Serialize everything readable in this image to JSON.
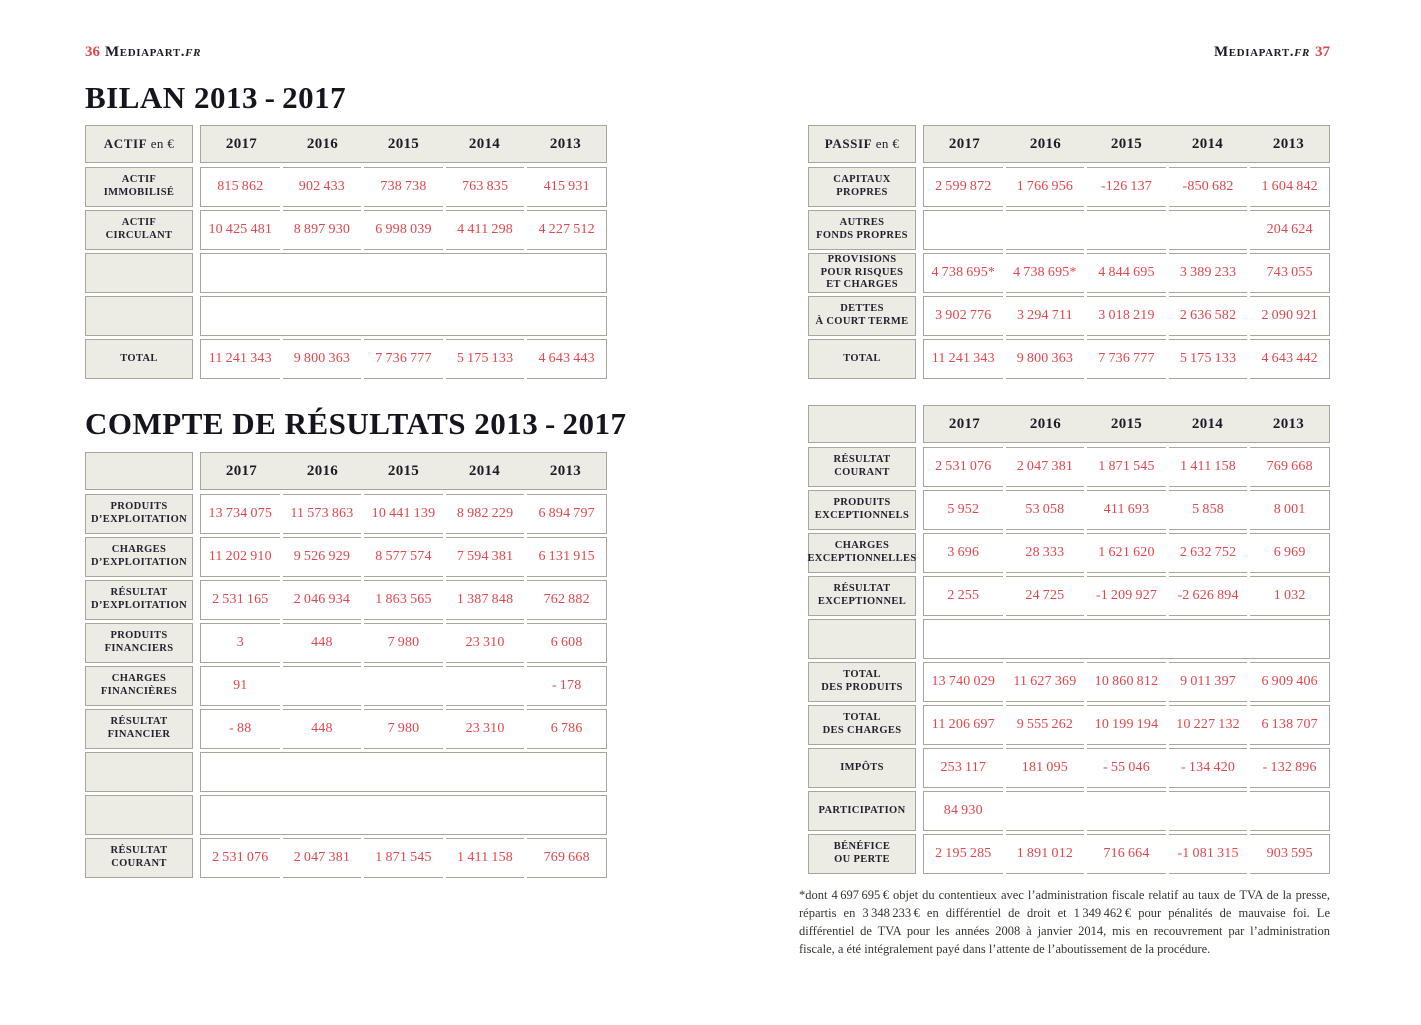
{
  "folio_left": {
    "number": "36",
    "brand": "Mediapart.",
    "suffix": "fr"
  },
  "folio_right": {
    "brand": "Mediapart.",
    "suffix": "fr",
    "number": "37"
  },
  "titles": {
    "bilan": "BILAN 2013 - 2017",
    "compte": "COMPTE DE RÉSULTATS 2013 - 2017"
  },
  "years": [
    "2017",
    "2016",
    "2015",
    "2014",
    "2013"
  ],
  "colors": {
    "accent_red": "#e0474d",
    "cell_bg": "#ecebe4",
    "cell_border": "#a8a59b",
    "label_text": "#232230"
  },
  "tables": {
    "actif": {
      "corner": {
        "strong": "ACTIF",
        "rest": " en €"
      },
      "rows": [
        {
          "label": "ACTIF\nIMMOBILISÉ",
          "values": [
            "815 862",
            "902 433",
            "738 738",
            "763 835",
            "415 931"
          ]
        },
        {
          "label": "ACTIF\nCIRCULANT",
          "values": [
            "10 425 481",
            "8 897 930",
            "6 998 039",
            "4 411 298",
            "4 227 512"
          ]
        },
        {
          "label": "",
          "empty": true
        },
        {
          "label": "",
          "empty": true
        },
        {
          "label": "TOTAL",
          "values": [
            "11 241 343",
            "9 800 363",
            "7 736 777",
            "5 175 133",
            "4 643 443"
          ]
        }
      ]
    },
    "passif": {
      "corner": {
        "strong": "PASSIF",
        "rest": " en €"
      },
      "rows": [
        {
          "label": "CAPITAUX\nPROPRES",
          "values": [
            "2 599 872",
            "1 766 956",
            "-126 137",
            "-850 682",
            "1 604 842"
          ]
        },
        {
          "label": "AUTRES\nFONDS PROPRES",
          "values": [
            "",
            "",
            "",
            "",
            "204 624"
          ]
        },
        {
          "label": "PROVISIONS\nPOUR RISQUES\nET CHARGES",
          "values": [
            "4 738 695*",
            "4 738 695*",
            "4 844 695",
            "3 389 233",
            "743 055"
          ]
        },
        {
          "label": "DETTES\nÀ COURT TERME",
          "values": [
            "3 902 776",
            "3 294 711",
            "3 018 219",
            "2 636 582",
            "2 090 921"
          ]
        },
        {
          "label": "TOTAL",
          "values": [
            "11 241 343",
            "9 800 363",
            "7 736 777",
            "5 175 133",
            "4 643 442"
          ]
        }
      ]
    },
    "compte_left": {
      "corner": {
        "strong": "",
        "rest": ""
      },
      "rows": [
        {
          "label": "PRODUITS\nD’EXPLOITATION",
          "values": [
            "13 734 075",
            "11 573 863",
            "10 441 139",
            "8 982 229",
            "6 894 797"
          ]
        },
        {
          "label": "CHARGES\nD’EXPLOITATION",
          "values": [
            "11 202 910",
            "9 526 929",
            "8 577 574",
            "7 594 381",
            "6 131 915"
          ]
        },
        {
          "label": "RÉSULTAT\nD’EXPLOITATION",
          "values": [
            "2 531 165",
            "2 046 934",
            "1 863 565",
            "1 387 848",
            "762 882"
          ]
        },
        {
          "label": "PRODUITS\nFINANCIERS",
          "values": [
            "3",
            "448",
            "7 980",
            "23 310",
            "6 608"
          ]
        },
        {
          "label": "CHARGES\nFINANCIÈRES",
          "values": [
            "91",
            "",
            "",
            "",
            "- 178"
          ]
        },
        {
          "label": "RÉSULTAT\nFINANCIER",
          "values": [
            "- 88",
            "448",
            "7 980",
            "23 310",
            "6 786"
          ]
        },
        {
          "label": "",
          "empty": true
        },
        {
          "label": "",
          "empty": true
        },
        {
          "label": "RÉSULTAT\nCOURANT",
          "values": [
            "2 531 076",
            "2 047 381",
            "1 871 545",
            "1 411 158",
            "769 668"
          ]
        }
      ]
    },
    "compte_right": {
      "corner": {
        "strong": "",
        "rest": ""
      },
      "rows": [
        {
          "label": "RÉSULTAT\nCOURANT",
          "values": [
            "2 531 076",
            "2 047 381",
            "1 871 545",
            "1 411 158",
            "769 668"
          ]
        },
        {
          "label": "PRODUITS\nEXCEPTIONNELS",
          "values": [
            "5 952",
            "53 058",
            "411 693",
            "5 858",
            "8 001"
          ]
        },
        {
          "label": "CHARGES\nEXCEPTIONNELLES",
          "values": [
            "3 696",
            "28 333",
            "1 621 620",
            "2 632 752",
            "6 969"
          ]
        },
        {
          "label": "RÉSULTAT\nEXCEPTIONNEL",
          "values": [
            "2 255",
            "24 725",
            "-1 209 927",
            "-2 626 894",
            "1 032"
          ]
        },
        {
          "label": "",
          "empty": true
        },
        {
          "label": "TOTAL\nDES PRODUITS",
          "values": [
            "13 740 029",
            "11 627 369",
            "10 860 812",
            "9 011 397",
            "6 909 406"
          ]
        },
        {
          "label": "TOTAL\nDES CHARGES",
          "values": [
            "11 206 697",
            "9 555 262",
            "10 199 194",
            "10 227 132",
            "6 138 707"
          ]
        },
        {
          "label": "IMPÔTS",
          "values": [
            "253 117",
            "181 095",
            "- 55 046",
            "- 134 420",
            "- 132 896"
          ]
        },
        {
          "label": "PARTICIPATION",
          "values": [
            "84 930",
            "",
            "",
            "",
            ""
          ]
        },
        {
          "label": "BÉNÉFICE\nOU PERTE",
          "values": [
            "2 195 285",
            "1 891 012",
            "716 664",
            "-1 081 315",
            "903 595"
          ]
        }
      ]
    }
  },
  "footnote": "*dont 4 697 695 € objet du contentieux avec l’administration fiscale relatif au taux de TVA de la presse, répartis en 3 348 233 € en différentiel de droit et 1 349 462 € pour pénalités de mauvaise foi. Le différentiel de TVA pour les années 2008 à janvier 2014, mis en recouvrement par l’administration fiscale, a été intégralement payé dans l’attente de l’aboutissement de la procédure."
}
